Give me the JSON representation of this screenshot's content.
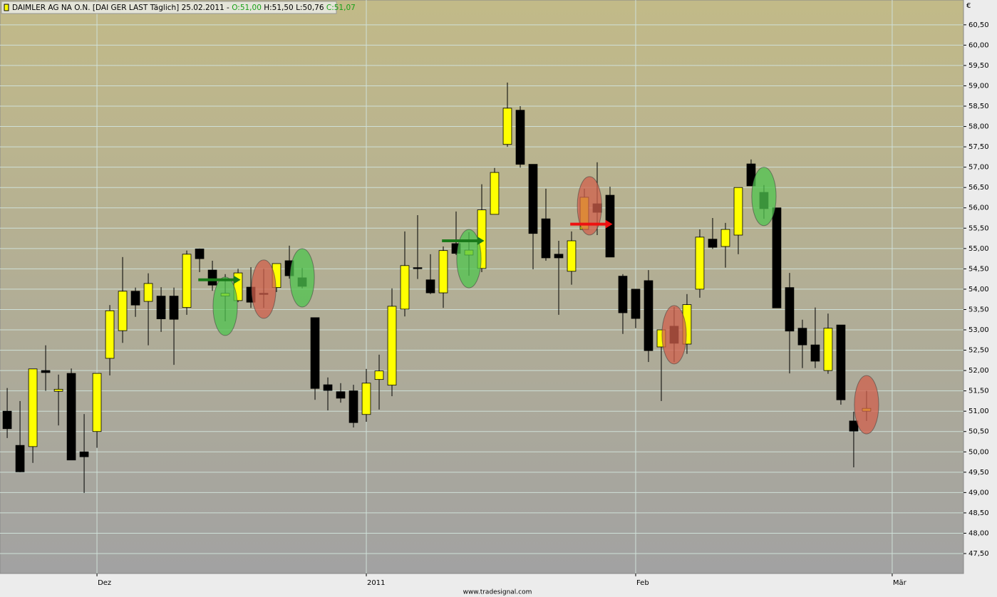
{
  "chart_data": {
    "type": "candlestick",
    "title": "DAIMLER AG NA O.N. [DAI GER LAST Täglich] 25.02.2011 -",
    "quote": [
      "O:51,00",
      "H:51,50",
      "L:50,76",
      "C:51,07"
    ],
    "currency": "€",
    "footer": "www.tradesignal.com",
    "open": [
      51.0,
      50.16,
      50.13,
      52.0,
      51.49,
      51.93,
      50.0,
      50.5,
      52.3,
      52.98,
      53.95,
      53.7,
      53.83,
      53.83,
      53.55,
      54.99,
      54.47,
      53.83,
      53.72,
      54.05,
      53.9,
      54.04,
      54.7,
      54.28,
      53.3,
      51.65,
      51.48,
      51.5,
      50.92,
      51.78,
      51.64,
      53.51,
      54.53,
      54.23,
      53.91,
      55.12,
      54.84,
      54.51,
      55.84,
      57.56,
      58.4,
      57.07,
      55.73,
      54.86,
      54.44,
      55.47,
      56.1,
      56.31,
      54.32,
      54.0,
      54.21,
      52.58,
      53.09,
      52.65,
      54.0,
      55.23,
      55.05,
      55.33,
      57.08,
      56.38,
      56.0,
      54.04,
      53.04,
      52.63,
      52.0,
      53.12,
      50.76,
      51.0
    ],
    "high": [
      51.57,
      51.25,
      52.04,
      52.62,
      51.9,
      52.05,
      50.93,
      51.93,
      53.61,
      54.79,
      54.04,
      54.39,
      54.05,
      54.04,
      54.95,
      55.0,
      54.7,
      54.37,
      54.5,
      54.54,
      54.5,
      54.63,
      55.07,
      54.52,
      53.3,
      51.83,
      51.69,
      51.65,
      52.04,
      52.39,
      54.02,
      55.42,
      55.82,
      54.86,
      55.05,
      55.91,
      55.4,
      56.58,
      56.98,
      59.08,
      58.5,
      57.07,
      56.47,
      55.19,
      55.42,
      56.47,
      57.12,
      56.52,
      54.37,
      54.0,
      54.47,
      53.0,
      53.56,
      53.88,
      55.47,
      55.75,
      55.63,
      56.5,
      57.19,
      56.56,
      56.0,
      54.4,
      53.25,
      53.55,
      53.4,
      53.12,
      50.99,
      51.5
    ],
    "low": [
      50.34,
      49.5,
      49.73,
      51.5,
      50.65,
      49.8,
      48.99,
      50.1,
      51.88,
      52.68,
      53.32,
      52.62,
      52.95,
      52.14,
      53.37,
      54.42,
      53.96,
      53.21,
      53.68,
      53.54,
      53.54,
      53.93,
      54.26,
      54.02,
      51.28,
      51.02,
      51.21,
      50.6,
      50.74,
      51.04,
      51.37,
      53.33,
      54.25,
      53.88,
      53.54,
      54.84,
      54.33,
      54.42,
      55.84,
      57.5,
      56.99,
      54.49,
      54.7,
      53.37,
      54.11,
      55.47,
      55.33,
      54.79,
      52.9,
      53.04,
      52.21,
      51.25,
      52.21,
      52.41,
      53.79,
      54.99,
      54.53,
      54.86,
      56.54,
      55.73,
      53.54,
      51.93,
      52.06,
      52.06,
      51.92,
      51.16,
      49.62,
      50.76
    ],
    "close": [
      50.57,
      49.51,
      52.04,
      51.95,
      51.54,
      49.8,
      49.88,
      51.93,
      53.47,
      53.95,
      53.61,
      54.14,
      53.27,
      53.26,
      54.86,
      54.75,
      54.1,
      53.9,
      54.4,
      53.68,
      53.87,
      54.63,
      54.33,
      54.07,
      51.56,
      51.51,
      51.32,
      50.72,
      51.69,
      51.99,
      53.58,
      54.58,
      54.51,
      53.91,
      54.95,
      54.88,
      54.96,
      55.95,
      56.87,
      58.45,
      57.07,
      55.37,
      54.77,
      54.77,
      55.19,
      56.26,
      55.89,
      54.79,
      53.42,
      53.28,
      52.49,
      53.0,
      52.67,
      53.62,
      55.28,
      55.03,
      55.47,
      56.5,
      56.54,
      55.98,
      53.54,
      52.97,
      52.63,
      52.23,
      53.04,
      51.28,
      50.51,
      51.07
    ],
    "up_color": "#ffff00",
    "down_color": "#000000",
    "highlights": [
      {
        "x": 17,
        "y": 53.58,
        "color": "#4fc44f"
      },
      {
        "x": 20,
        "y": 54.0,
        "color": "#d0604c"
      },
      {
        "x": 23,
        "y": 54.28,
        "color": "#4fc44f"
      },
      {
        "x": 36,
        "y": 54.75,
        "color": "#4fc44f"
      },
      {
        "x": 45.4,
        "y": 56.05,
        "color": "#d0604c"
      },
      {
        "x": 52,
        "y": 52.88,
        "color": "#d0604c"
      },
      {
        "x": 59,
        "y": 56.28,
        "color": "#4fc44f"
      },
      {
        "x": 67,
        "y": 51.16,
        "color": "#d0604c"
      }
    ],
    "arrows": [
      {
        "from": 14.9,
        "to": 18.2,
        "y": 54.23,
        "color": "#1a7a1a"
      },
      {
        "from": 33.9,
        "to": 37.2,
        "y": 55.19,
        "color": "#1a7a1a"
      },
      {
        "from": 43.9,
        "to": 47.2,
        "y": 55.6,
        "color": "#ee1111"
      }
    ],
    "xlim": [
      -0.56,
      74.56
    ],
    "xticks": [
      {
        "value": 7,
        "label": "Dez"
      },
      {
        "value": 28,
        "label": "2011"
      },
      {
        "value": 49,
        "label": "Feb"
      },
      {
        "value": 69,
        "label": "Mär"
      }
    ],
    "ylim": [
      47.01,
      61.11
    ],
    "yticks": [
      {
        "value": 47.5,
        "label": "47,50"
      },
      {
        "value": 48,
        "label": "48,00"
      },
      {
        "value": 48.5,
        "label": "48,50"
      },
      {
        "value": 49,
        "label": "49,00"
      },
      {
        "value": 49.5,
        "label": "49,50"
      },
      {
        "value": 50,
        "label": "50,00"
      },
      {
        "value": 50.5,
        "label": "50,50"
      },
      {
        "value": 51,
        "label": "51,00"
      },
      {
        "value": 51.5,
        "label": "51,50"
      },
      {
        "value": 52,
        "label": "52,00"
      },
      {
        "value": 52.5,
        "label": "52,50"
      },
      {
        "value": 53,
        "label": "53,00"
      },
      {
        "value": 53.5,
        "label": "53,50"
      },
      {
        "value": 54,
        "label": "54,00"
      },
      {
        "value": 54.5,
        "label": "54,50"
      },
      {
        "value": 55,
        "label": "55,00"
      },
      {
        "value": 55.5,
        "label": "55,50"
      },
      {
        "value": 56,
        "label": "56,00"
      },
      {
        "value": 56.5,
        "label": "56,50"
      },
      {
        "value": 57,
        "label": "57,00"
      },
      {
        "value": 57.5,
        "label": "57,50"
      },
      {
        "value": 58,
        "label": "58,00"
      },
      {
        "value": 58.5,
        "label": "58,50"
      },
      {
        "value": 59,
        "label": "59,00"
      },
      {
        "value": 59.5,
        "label": "59,50"
      },
      {
        "value": 60,
        "label": "60,00"
      },
      {
        "value": 60.5,
        "label": "60,50"
      }
    ],
    "grid": true
  }
}
